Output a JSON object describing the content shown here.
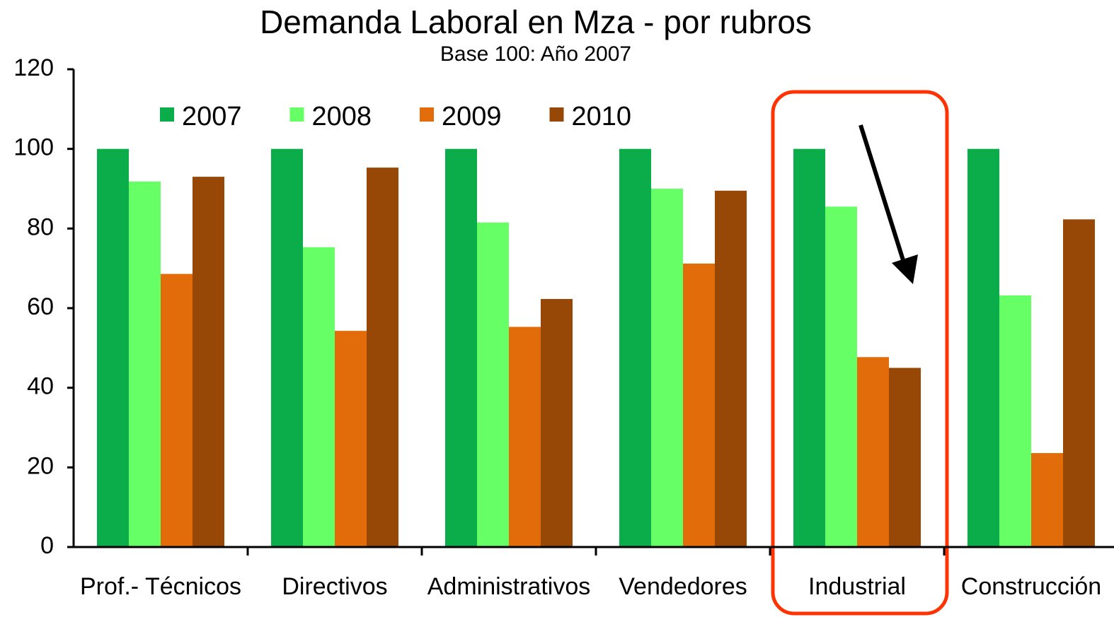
{
  "chart_data": {
    "type": "bar",
    "title": "Demanda Laboral en Mza - por rubros",
    "subtitle": "Base 100: Año 2007",
    "categories": [
      "Prof.- Técnicos",
      "Directivos",
      "Administrativos",
      "Vendedores",
      "Industrial",
      "Construcción"
    ],
    "series": [
      {
        "name": "2007",
        "color": "#0aad4a",
        "values": [
          100,
          100,
          100,
          100,
          100,
          100
        ]
      },
      {
        "name": "2008",
        "color": "#66ff66",
        "values": [
          91.8,
          75.3,
          81.5,
          90,
          85.5,
          63.2
        ]
      },
      {
        "name": "2009",
        "color": "#e36c0a",
        "values": [
          68.6,
          54.3,
          55.3,
          71.2,
          47.7,
          23.6
        ]
      },
      {
        "name": "2010",
        "color": "#974706",
        "values": [
          93,
          95.3,
          62.3,
          89.5,
          45,
          82.3
        ]
      }
    ],
    "ylim": [
      0,
      120
    ],
    "yticks": [
      0,
      20,
      40,
      60,
      80,
      100,
      120
    ]
  }
}
